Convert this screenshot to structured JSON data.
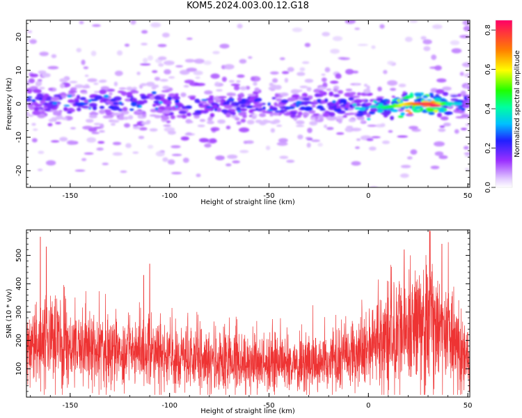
{
  "page": {
    "title": "KOM5.2024.003.00.12.G18"
  },
  "chart_data": [
    {
      "type": "heatmap",
      "title": "KOM5.2024.003.00.12.G18",
      "xlabel": "Height of straight line (km)",
      "ylabel": "Frequency (Hz)",
      "xlim": [
        -172,
        51
      ],
      "ylim": [
        -25,
        25
      ],
      "x_ticks": [
        -150,
        -100,
        -50,
        0,
        50
      ],
      "y_ticks": [
        -20,
        -10,
        0,
        10,
        20
      ],
      "x_tick_labels": [
        "-150",
        "-100",
        "-50",
        "0",
        "50"
      ],
      "y_tick_labels": [
        "-20",
        "-10",
        "0",
        "10",
        "20"
      ],
      "colorbar": {
        "label": "Normalized spectral amplitude",
        "range": [
          0,
          0.85
        ],
        "ticks": [
          0.0,
          0.2,
          0.4,
          0.6,
          0.8
        ],
        "tick_labels": [
          "0.0",
          "0.2",
          "0.4",
          "0.6",
          "0.8"
        ],
        "colormap": "rainbow-white"
      },
      "ridge": {
        "description_points_x": [
          -172,
          -150,
          -120,
          -100,
          -80,
          -60,
          -40,
          -20,
          0,
          10,
          20,
          30,
          40,
          50
        ],
        "center_freq": [
          1,
          0,
          0,
          0,
          -1,
          0,
          -1,
          0,
          -1,
          -1,
          0,
          0,
          0,
          0
        ],
        "peak_amplitude": [
          0.25,
          0.3,
          0.28,
          0.3,
          0.25,
          0.28,
          0.27,
          0.3,
          0.35,
          0.45,
          0.65,
          0.85,
          0.4,
          0.3
        ]
      },
      "peak": {
        "x": 33,
        "freq": -0.5,
        "amplitude": 0.85
      }
    },
    {
      "type": "line",
      "xlabel": "Height of straight line (km)",
      "ylabel": "SNR (10 * v/v)",
      "xlim": [
        -172,
        51
      ],
      "ylim": [
        0,
        590
      ],
      "x_ticks": [
        -150,
        -100,
        -50,
        0,
        50
      ],
      "y_ticks": [
        100,
        200,
        300,
        400,
        500
      ],
      "x_tick_labels": [
        "-150",
        "-100",
        "-50",
        "0",
        "50"
      ],
      "y_tick_labels": [
        "100",
        "200",
        "300",
        "400",
        "500"
      ],
      "series": [
        {
          "color": "#ee3333",
          "trend_x": [
            -172,
            -160,
            -150,
            -140,
            -120,
            -100,
            -80,
            -60,
            -40,
            -20,
            -10,
            0,
            10,
            20,
            30,
            40,
            45,
            51
          ],
          "trend_y": [
            175,
            195,
            185,
            170,
            150,
            140,
            130,
            125,
            120,
            125,
            140,
            170,
            200,
            240,
            270,
            240,
            180,
            115
          ],
          "spike_max": [
            {
              "x": -165,
              "y": 565
            },
            {
              "x": -162,
              "y": 530
            },
            {
              "x": -113,
              "y": 430
            },
            {
              "x": -110,
              "y": 470
            },
            {
              "x": 18,
              "y": 520
            },
            {
              "x": 31,
              "y": 585
            },
            {
              "x": 37,
              "y": 540
            }
          ]
        }
      ]
    }
  ]
}
